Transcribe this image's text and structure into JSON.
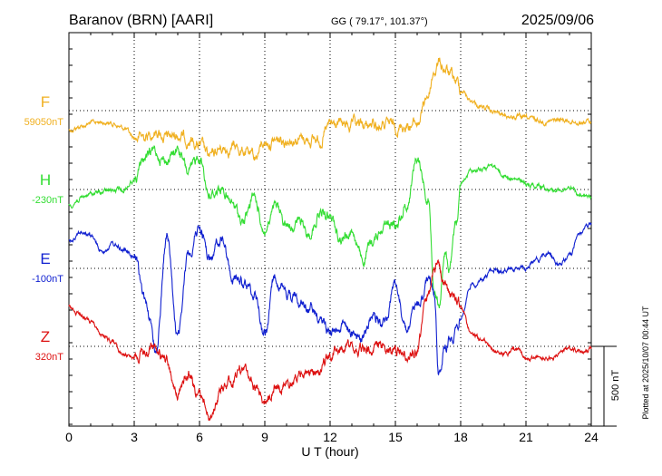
{
  "header": {
    "station": "Baranov (BRN)  [AARI]",
    "coords": "GG ( 79.17°, 101.37°)",
    "date": "2025/09/06"
  },
  "footer": {
    "plotted": "Plotted at 2025/10/07 00:44 UT",
    "scale_label": "500 nT"
  },
  "chart_data": {
    "type": "line",
    "xlabel": "U T (hour)",
    "xlim": [
      0,
      24
    ],
    "xticks": [
      "0",
      "3",
      "6",
      "9",
      "12",
      "15",
      "18",
      "21",
      "24"
    ],
    "grid": true,
    "series": [
      {
        "name": "F",
        "baseline": "59050nT",
        "color": "#f0b020",
        "t": [
          0,
          0.5,
          1,
          1.5,
          2,
          2.5,
          3,
          3.5,
          4,
          4.5,
          5,
          5.5,
          6,
          6.5,
          7,
          7.5,
          8,
          8.5,
          9,
          9.5,
          10,
          10.5,
          11,
          11.5,
          12,
          12.5,
          13,
          13.5,
          14,
          14.5,
          15,
          15.5,
          16,
          16.5,
          16.8,
          17,
          17.3,
          17.5,
          17.8,
          18,
          18.5,
          19,
          19.5,
          20,
          20.5,
          21,
          21.5,
          22,
          22.5,
          23,
          23.5,
          24
        ],
        "v": [
          -120,
          -100,
          -80,
          -70,
          -80,
          -110,
          -170,
          -160,
          -120,
          -170,
          -150,
          -180,
          -220,
          -300,
          -240,
          -230,
          -250,
          -300,
          -200,
          -190,
          -170,
          -170,
          -180,
          -180,
          -100,
          -90,
          -100,
          -100,
          -90,
          -95,
          -100,
          -90,
          -80,
          100,
          250,
          300,
          260,
          220,
          180,
          140,
          60,
          20,
          -10,
          -30,
          -40,
          -50,
          -60,
          -70,
          -60,
          -65,
          -70,
          -70
        ]
      },
      {
        "name": "H",
        "baseline": "-230nT",
        "color": "#33dd33",
        "t": [
          0,
          0.5,
          1,
          1.5,
          2,
          2.5,
          3,
          3.5,
          4,
          4.5,
          5,
          5.5,
          6,
          6.5,
          7,
          7.5,
          8,
          8.5,
          9,
          9.5,
          10,
          10.5,
          11,
          11.5,
          12,
          12.5,
          13,
          13.5,
          14,
          14.5,
          15,
          15.5,
          16,
          16.5,
          16.8,
          17,
          17.3,
          17.5,
          17.8,
          18,
          18.5,
          19,
          19.5,
          20,
          20.5,
          21,
          21.5,
          22,
          22.5,
          23,
          23.5,
          24
        ],
        "v": [
          -100,
          -60,
          -30,
          -20,
          -10,
          0,
          60,
          200,
          230,
          180,
          250,
          100,
          210,
          -40,
          20,
          -100,
          -200,
          -50,
          -250,
          -130,
          -220,
          -200,
          -280,
          -150,
          -180,
          -300,
          -260,
          -450,
          -320,
          -200,
          -230,
          -100,
          200,
          -50,
          -600,
          -700,
          -400,
          -500,
          -200,
          50,
          120,
          140,
          150,
          90,
          60,
          40,
          30,
          10,
          0,
          10,
          -50,
          -50
        ]
      },
      {
        "name": "E",
        "baseline": "-100nT",
        "color": "#1020d0",
        "t": [
          0,
          0.5,
          1,
          1.5,
          2,
          2.5,
          3,
          3.5,
          4,
          4.5,
          5,
          5.5,
          6,
          6.5,
          7,
          7.5,
          8,
          8.5,
          9,
          9.5,
          10,
          10.5,
          11,
          11.5,
          12,
          12.5,
          13,
          13.5,
          14,
          14.5,
          15,
          15.5,
          16,
          16.5,
          16.8,
          17,
          17.3,
          17.5,
          17.8,
          18,
          18.5,
          19,
          19.5,
          20,
          20.5,
          21,
          21.5,
          22,
          22.5,
          23,
          23.5,
          24
        ],
        "v": [
          170,
          230,
          200,
          110,
          150,
          120,
          60,
          -200,
          -500,
          200,
          -450,
          100,
          250,
          60,
          200,
          -50,
          -100,
          -150,
          -400,
          -50,
          -150,
          -200,
          -250,
          -300,
          -400,
          -350,
          -380,
          -450,
          -300,
          -350,
          -100,
          -400,
          -250,
          -100,
          -200,
          -650,
          -500,
          -450,
          -400,
          -300,
          -100,
          -80,
          0,
          -20,
          -10,
          0,
          60,
          100,
          20,
          80,
          220,
          270
        ]
      },
      {
        "name": "Z",
        "baseline": "320nT",
        "color": "#dd1111",
        "t": [
          0,
          0.5,
          1,
          1.5,
          2,
          2.5,
          3,
          3.5,
          4,
          4.5,
          5,
          5.5,
          6,
          6.5,
          7,
          7.5,
          8,
          8.5,
          9,
          9.5,
          10,
          10.5,
          11,
          11.5,
          12,
          12.5,
          13,
          13.5,
          14,
          14.5,
          15,
          15.5,
          16,
          16.5,
          16.8,
          17,
          17.3,
          17.5,
          17.8,
          18,
          18.5,
          19,
          19.5,
          20,
          20.5,
          21,
          21.5,
          22,
          22.5,
          23,
          23.5,
          24
        ],
        "v": [
          250,
          200,
          150,
          70,
          30,
          -60,
          -60,
          -40,
          10,
          -100,
          -300,
          -180,
          -320,
          -430,
          -280,
          -200,
          -150,
          -250,
          -320,
          -250,
          -250,
          -200,
          -170,
          -150,
          -60,
          -20,
          -10,
          -30,
          0,
          -10,
          -30,
          -50,
          -10,
          300,
          500,
          480,
          400,
          350,
          300,
          250,
          80,
          40,
          -30,
          -60,
          -20,
          -80,
          -60,
          -80,
          -60,
          -10,
          -20,
          -20
        ]
      }
    ]
  }
}
